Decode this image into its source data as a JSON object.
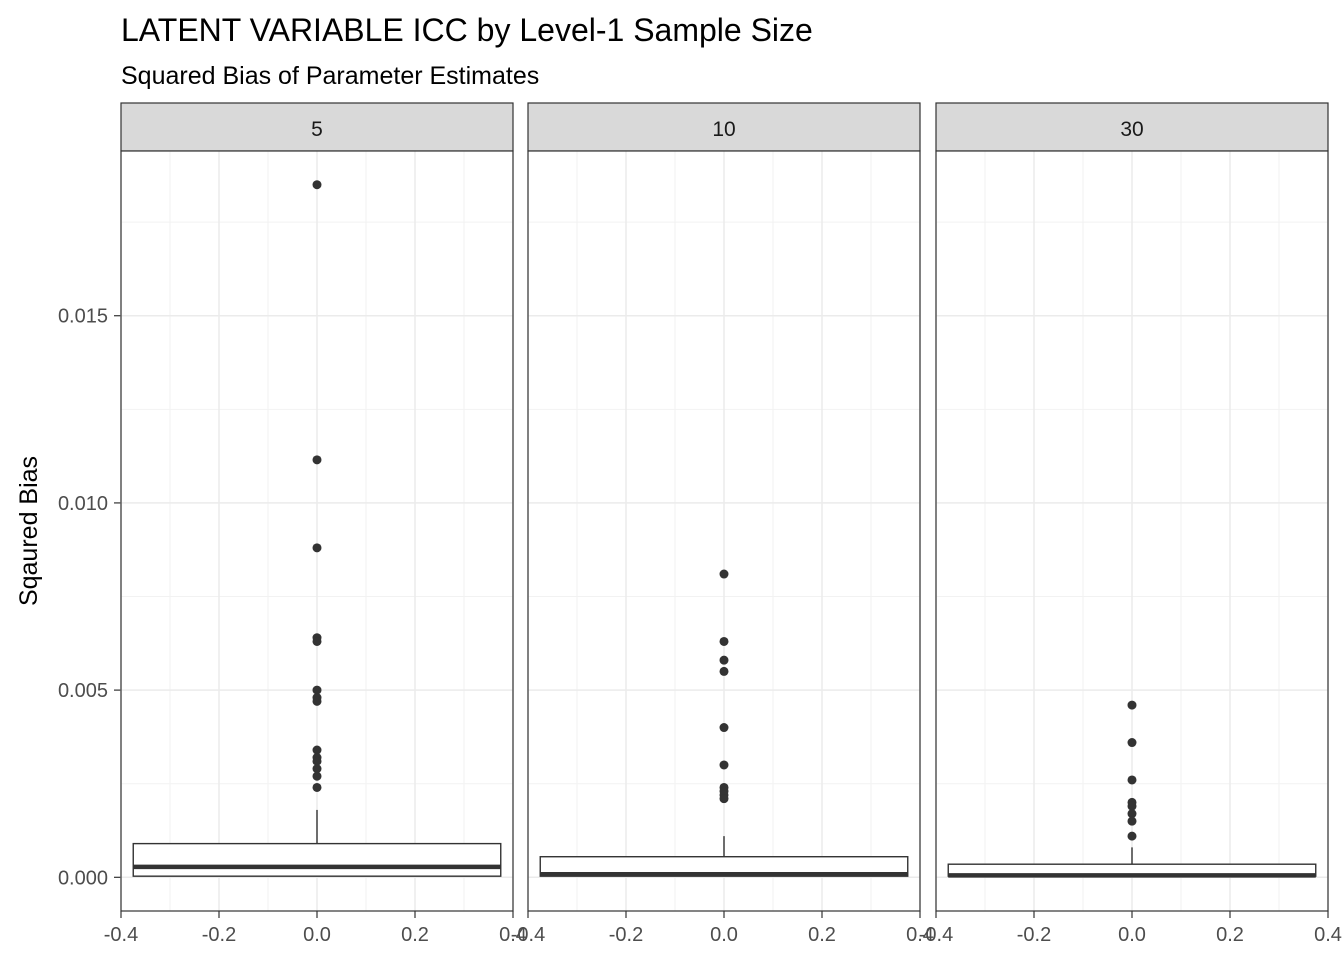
{
  "chart_data": {
    "type": "boxplot",
    "title": "LATENT VARIABLE ICC by Level-1 Sample Size",
    "subtitle": "Squared Bias of Parameter Estimates",
    "xlabel": "",
    "ylabel": "Sqaured Bias",
    "xlim": [
      -0.4,
      0.4
    ],
    "ylim": [
      -0.0009,
      0.0194
    ],
    "x_ticks": [
      "-0.4",
      "-0.2",
      "0.0",
      "0.2",
      "0.4"
    ],
    "y_ticks": [
      "0.000",
      "0.005",
      "0.010",
      "0.015"
    ],
    "grid": true,
    "facets": [
      {
        "label": "5",
        "box": {
          "x_min": -0.375,
          "x_max": 0.375,
          "lower": 3e-05,
          "q1": 3e-05,
          "median": 0.00028,
          "q3": 0.0009,
          "upper": 0.0018
        },
        "outliers": [
          0.0185,
          0.01115,
          0.0088,
          0.0064,
          0.0063,
          0.005,
          0.0048,
          0.0047,
          0.0034,
          0.0032,
          0.0031,
          0.0029,
          0.0027,
          0.0024
        ]
      },
      {
        "label": "10",
        "box": {
          "x_min": -0.375,
          "x_max": 0.375,
          "lower": 3e-05,
          "q1": 3e-05,
          "median": 8e-05,
          "q3": 0.00055,
          "upper": 0.0011
        },
        "outliers": [
          0.0081,
          0.0063,
          0.0058,
          0.0055,
          0.004,
          0.003,
          0.0024,
          0.0023,
          0.0022,
          0.0021
        ]
      },
      {
        "label": "30",
        "box": {
          "x_min": -0.375,
          "x_max": 0.375,
          "lower": 3e-05,
          "q1": 3e-05,
          "median": 5e-05,
          "q3": 0.00035,
          "upper": 0.0008
        },
        "outliers": [
          0.0046,
          0.0036,
          0.0026,
          0.002,
          0.0019,
          0.0017,
          0.0015,
          0.0011
        ]
      }
    ]
  }
}
